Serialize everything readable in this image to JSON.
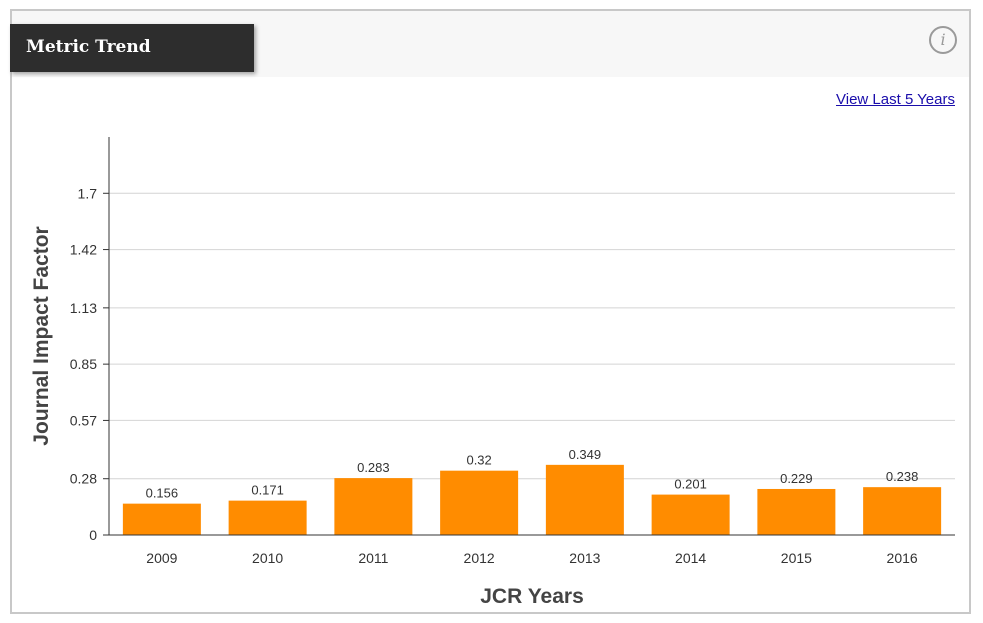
{
  "header": {
    "title": "Metric Trend",
    "info_icon": "info-icon",
    "info_glyph": "i"
  },
  "links": {
    "view_last_5": "View Last 5 Years"
  },
  "colors": {
    "bar": "#ff8c00",
    "grid": "#d4d4d4",
    "axis": "#333333"
  },
  "chart_data": {
    "type": "bar",
    "title": "",
    "xlabel": "JCR Years",
    "ylabel": "Journal Impact Factor",
    "categories": [
      "2009",
      "2010",
      "2011",
      "2012",
      "2013",
      "2014",
      "2015",
      "2016"
    ],
    "values": [
      0.156,
      0.171,
      0.283,
      0.32,
      0.349,
      0.201,
      0.229,
      0.238
    ],
    "value_labels": [
      "0.156",
      "0.171",
      "0.283",
      "0.32",
      "0.349",
      "0.201",
      "0.229",
      "0.238"
    ],
    "yticks": [
      0,
      0.28,
      0.57,
      0.85,
      1.13,
      1.42,
      1.7
    ],
    "ytick_labels": [
      "0",
      "0.28",
      "0.57",
      "0.85",
      "1.13",
      "1.42",
      "1.7"
    ],
    "ylim": [
      0,
      1.98
    ],
    "grid": true,
    "legend": "none"
  }
}
